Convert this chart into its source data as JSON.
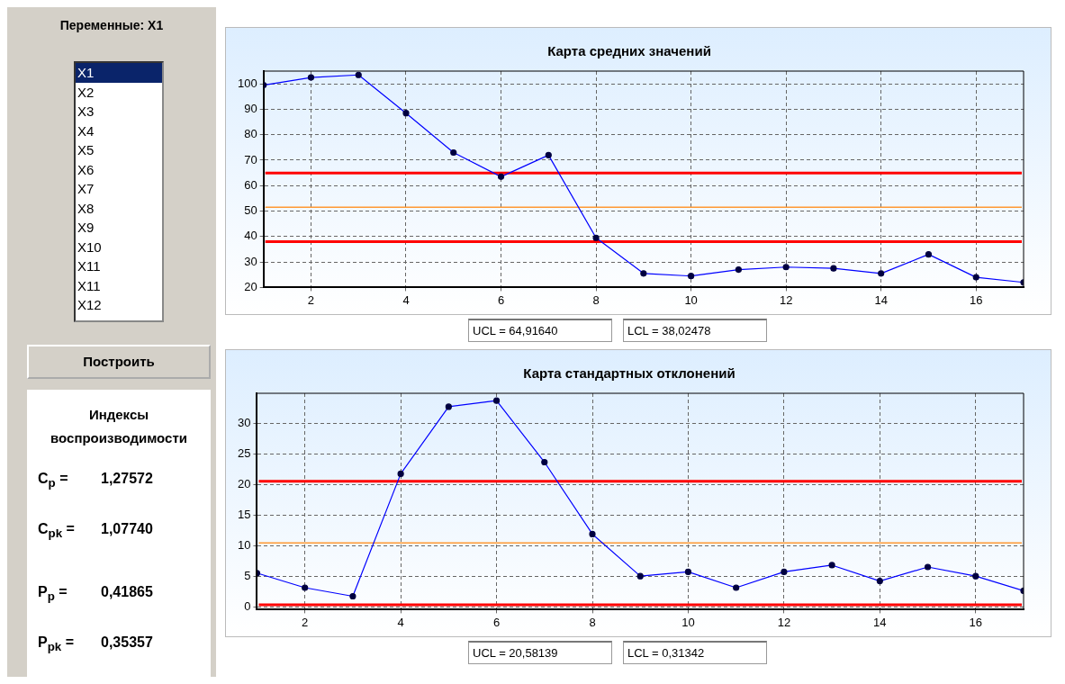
{
  "chart_data": [
    {
      "type": "other",
      "title": "Переменные: X1",
      "annotations": [
        "X1",
        "X2",
        "X3",
        "X4",
        "X5",
        "X6",
        "X7",
        "X8",
        "X9",
        "X10",
        "X11",
        "X11",
        "X12",
        "Построить",
        "Индексы воспроизводимости",
        "C$_{p}$ =",
        "1,27572",
        "C$_{pk}$ =",
        "1,07740",
        "P$_{p}$ =",
        "0,41865",
        "P$_{pk}$ =",
        "0,35357"
      ]
    },
    {
      "type": "line",
      "title": "Карта средних значений",
      "x": [
        1,
        2,
        3,
        4,
        5,
        6,
        7,
        8,
        9,
        10,
        11,
        12,
        13,
        14,
        15,
        16,
        17
      ],
      "series": [
        {
          "color": "#0000ff",
          "values": [
            99.5,
            102.5,
            103.5,
            88.5,
            73,
            63.5,
            72,
            39.5,
            25.5,
            24.5,
            27,
            28,
            27.5,
            25.5,
            33,
            24,
            22
          ]
        }
      ],
      "xlim": [
        1,
        17
      ],
      "xticks": [
        2,
        4,
        6,
        8,
        10,
        12,
        14,
        16
      ],
      "ylim": [
        20,
        105
      ],
      "yticks": [
        20,
        30,
        40,
        50,
        60,
        70,
        80,
        90,
        100
      ],
      "ref_lines": [
        {
          "axis": "y",
          "value": 64.9164,
          "color": "#ff0000"
        },
        {
          "axis": "y",
          "value": 51.5,
          "color": "#ff9933"
        },
        {
          "axis": "y",
          "value": 38.02478,
          "color": "#ff0000"
        }
      ],
      "grid": true,
      "legend": false,
      "marker": "circle",
      "line_style": "solid",
      "annotations": [
        "UCL = 64,91640",
        "LCL = 38,02478"
      ]
    },
    {
      "type": "line",
      "title": "Карта стандартных отклонений",
      "x": [
        1,
        2,
        3,
        4,
        5,
        6,
        7,
        8,
        9,
        10,
        11,
        12,
        13,
        14,
        15,
        16,
        17
      ],
      "series": [
        {
          "color": "#0000ff",
          "values": [
            5.5,
            3.1,
            1.7,
            21.8,
            32.8,
            33.8,
            23.7,
            11.9,
            5,
            5.7,
            3.1,
            5.7,
            6.8,
            4.2,
            6.5,
            5,
            2.6
          ]
        }
      ],
      "xlim": [
        1,
        17
      ],
      "xticks": [
        2,
        4,
        6,
        8,
        10,
        12,
        14,
        16
      ],
      "ylim": [
        -0.5,
        35
      ],
      "yticks": [
        0,
        5,
        10,
        15,
        20,
        25,
        30
      ],
      "ref_lines": [
        {
          "axis": "y",
          "value": 20.58139,
          "color": "#ff0000"
        },
        {
          "axis": "y",
          "value": 10.45,
          "color": "#ff9933"
        },
        {
          "axis": "y",
          "value": 0.31342,
          "color": "#ff0000"
        }
      ],
      "grid": true,
      "legend": false,
      "marker": "circle",
      "line_style": "solid",
      "annotations": [
        "UCL = 20,58139",
        "LCL = 0,31342"
      ]
    }
  ]
}
